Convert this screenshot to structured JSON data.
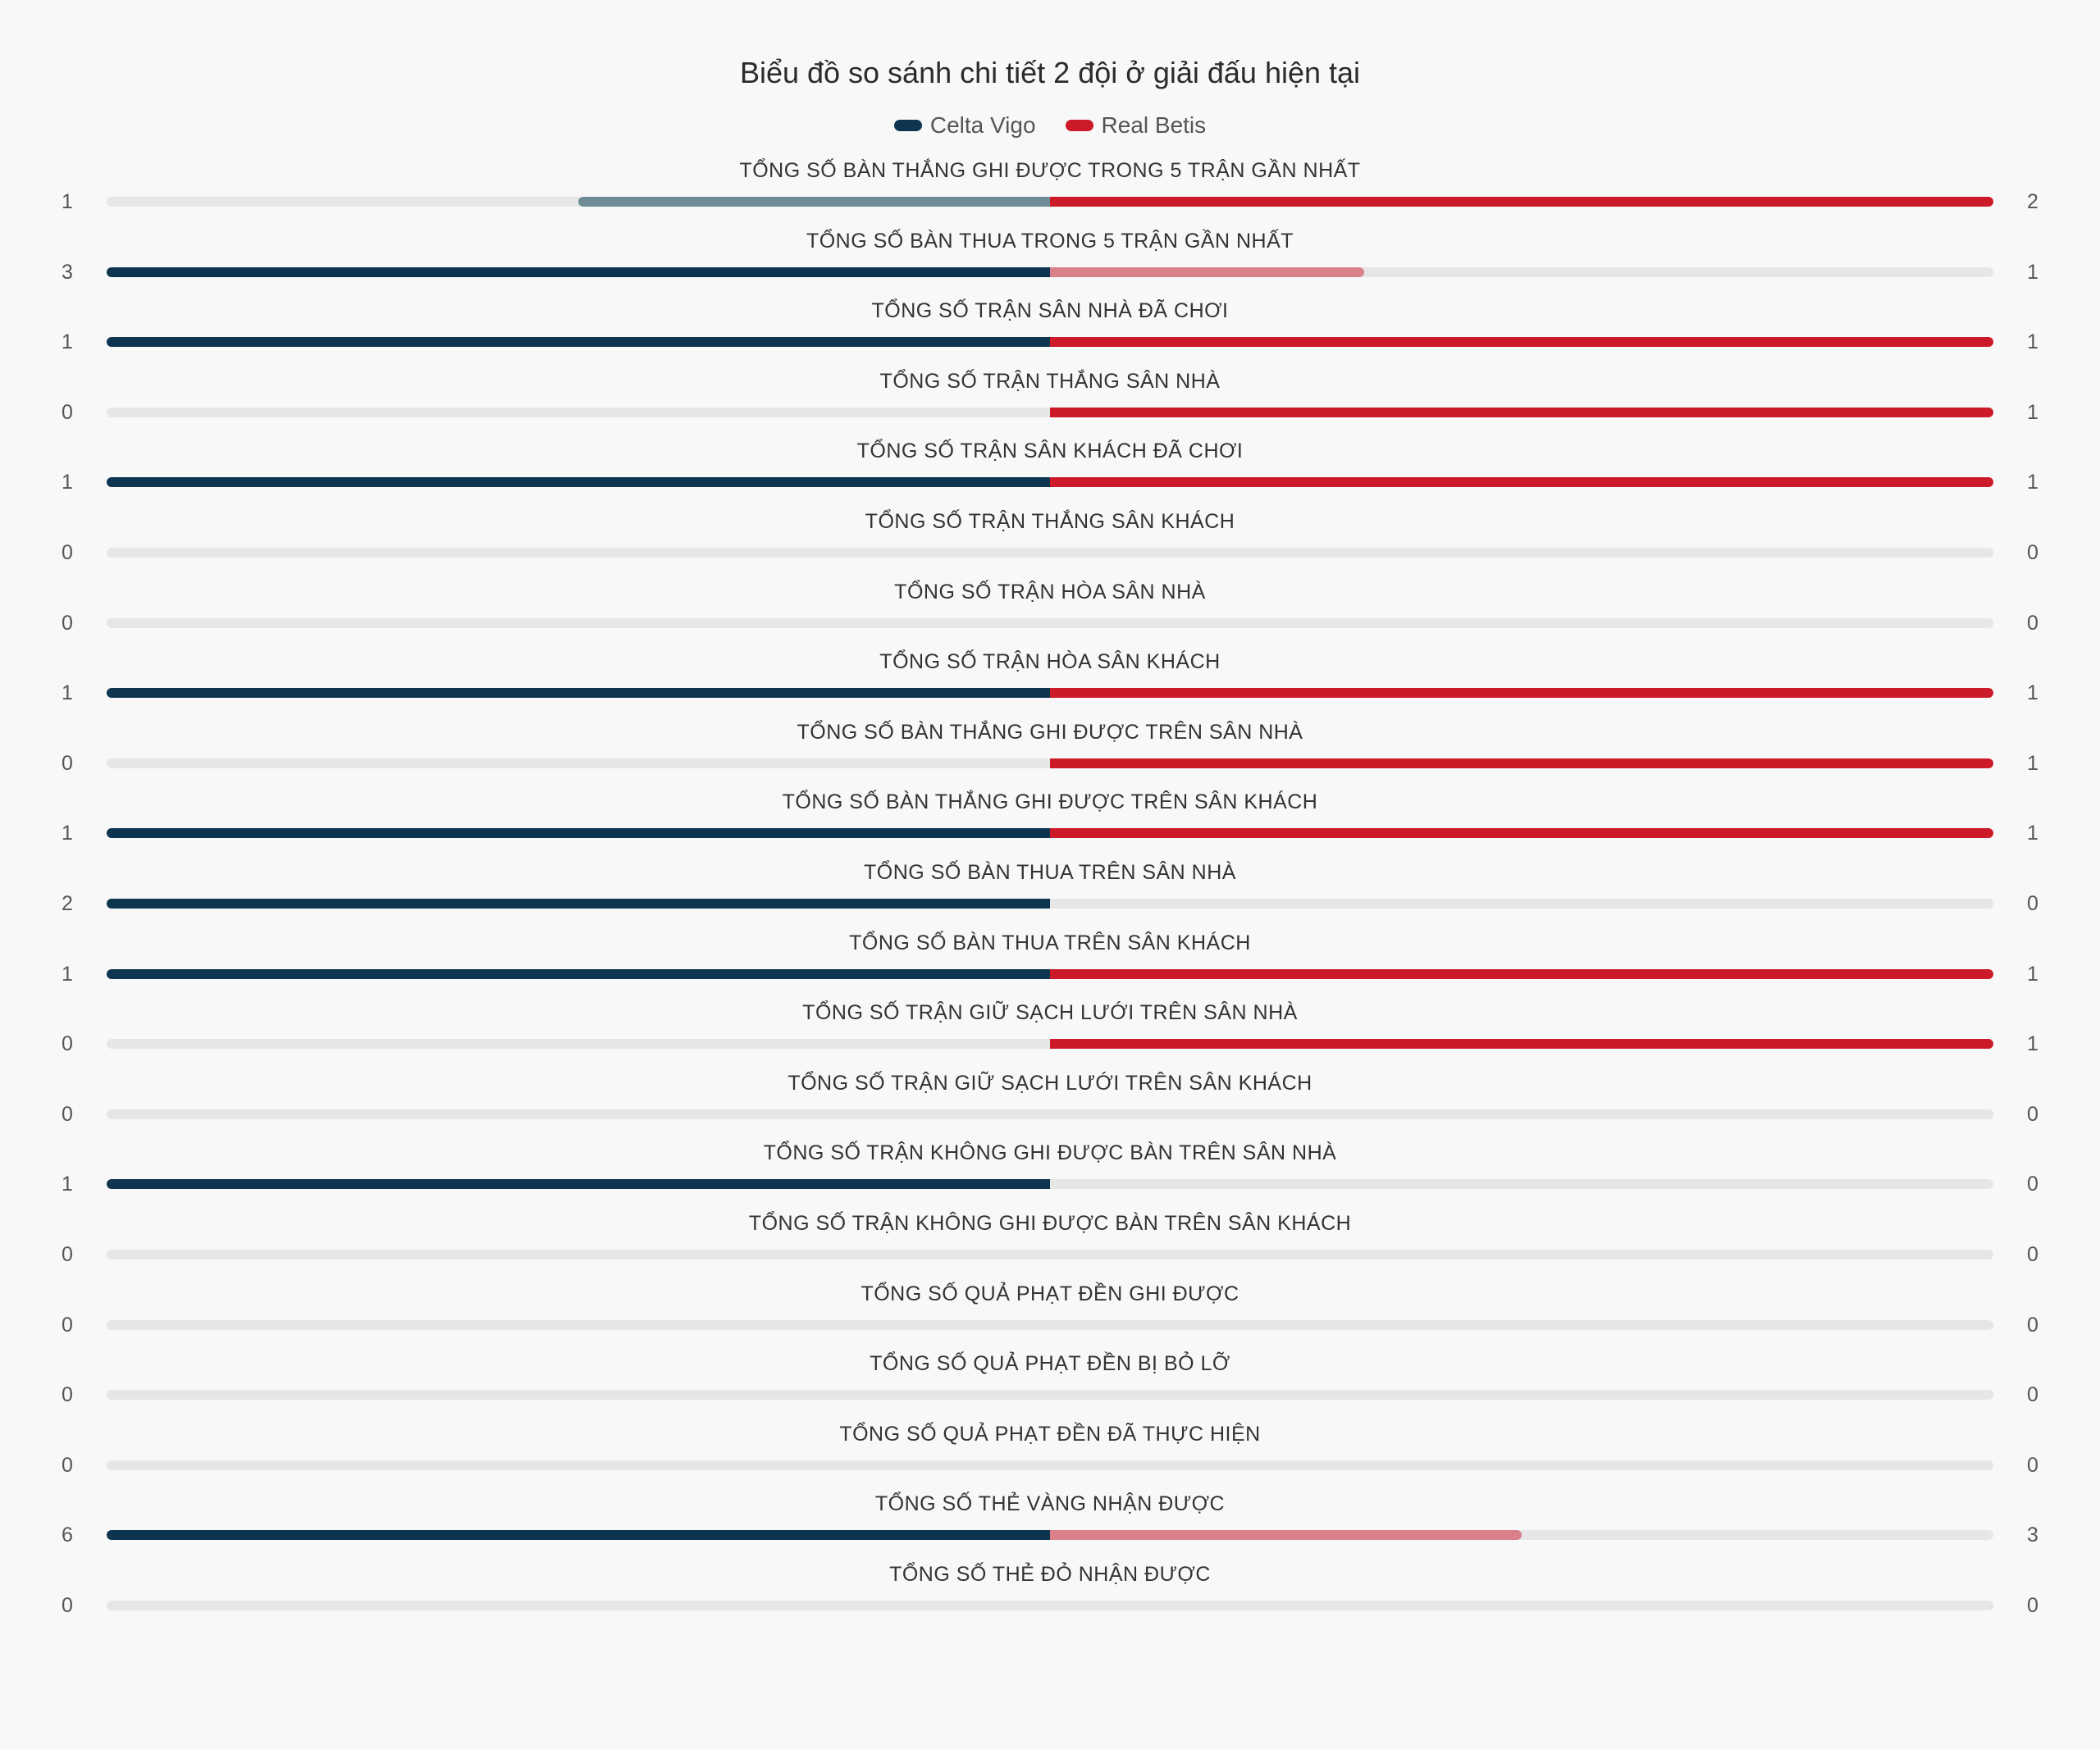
{
  "chart_data": {
    "type": "bar",
    "title": "Biểu đồ so sánh chi tiết 2 đội ở giải đấu hiện tại",
    "series": [
      {
        "name": "Celta Vigo",
        "color": "#0d3550",
        "dim_color": "#6f8c96"
      },
      {
        "name": "Real Betis",
        "color": "#cc1a29",
        "dim_color": "#d9808a"
      }
    ],
    "categories": [
      "TỔNG SỐ BÀN THẮNG GHI ĐƯỢC TRONG 5 TRẬN GẦN NHẤT",
      "TỔNG SỐ BÀN THUA TRONG 5 TRẬN GẦN NHẤT",
      "TỔNG SỐ TRẬN SÂN NHÀ ĐÃ CHƠI",
      "TỔNG SỐ TRẬN THẮNG SÂN NHÀ",
      "TỔNG SỐ TRẬN SÂN KHÁCH ĐÃ CHƠI",
      "TỔNG SỐ TRẬN THẮNG SÂN KHÁCH",
      "TỔNG SỐ TRẬN HÒA SÂN NHÀ",
      "TỔNG SỐ TRẬN HÒA SÂN KHÁCH",
      "TỔNG SỐ BÀN THẮNG GHI ĐƯỢC TRÊN SÂN NHÀ",
      "TỔNG SỐ BÀN THẮNG GHI ĐƯỢC TRÊN SÂN KHÁCH",
      "TỔNG SỐ BÀN THUA TRÊN SÂN NHÀ",
      "TỔNG SỐ BÀN THUA TRÊN SÂN KHÁCH",
      "TỔNG SỐ TRẬN GIỮ SẠCH LƯỚI TRÊN SÂN NHÀ",
      "TỔNG SỐ TRẬN GIỮ SẠCH LƯỚI TRÊN SÂN KHÁCH",
      "TỔNG SỐ TRẬN KHÔNG GHI ĐƯỢC BÀN TRÊN SÂN NHÀ",
      "TỔNG SỐ TRẬN KHÔNG GHI ĐƯỢC BÀN TRÊN SÂN KHÁCH",
      "TỔNG SỐ QUẢ PHẠT ĐỀN GHI ĐƯỢC",
      "TỔNG SỐ QUẢ PHẠT ĐỀN BỊ BỎ LỠ",
      "TỔNG SỐ QUẢ PHẠT ĐỀN ĐÃ THỰC HIỆN",
      "TỔNG SỐ THẺ VÀNG NHẬN ĐƯỢC",
      "TỔNG SỐ THẺ ĐỎ NHẬN ĐƯỢC"
    ],
    "celta_values": [
      1,
      3,
      1,
      0,
      1,
      0,
      0,
      1,
      0,
      1,
      2,
      1,
      0,
      0,
      1,
      0,
      0,
      0,
      0,
      6,
      0
    ],
    "betis_values": [
      2,
      1,
      1,
      1,
      1,
      0,
      0,
      1,
      1,
      1,
      0,
      1,
      1,
      0,
      0,
      0,
      0,
      0,
      0,
      3,
      0
    ],
    "track_color": "#e6e6e6"
  }
}
